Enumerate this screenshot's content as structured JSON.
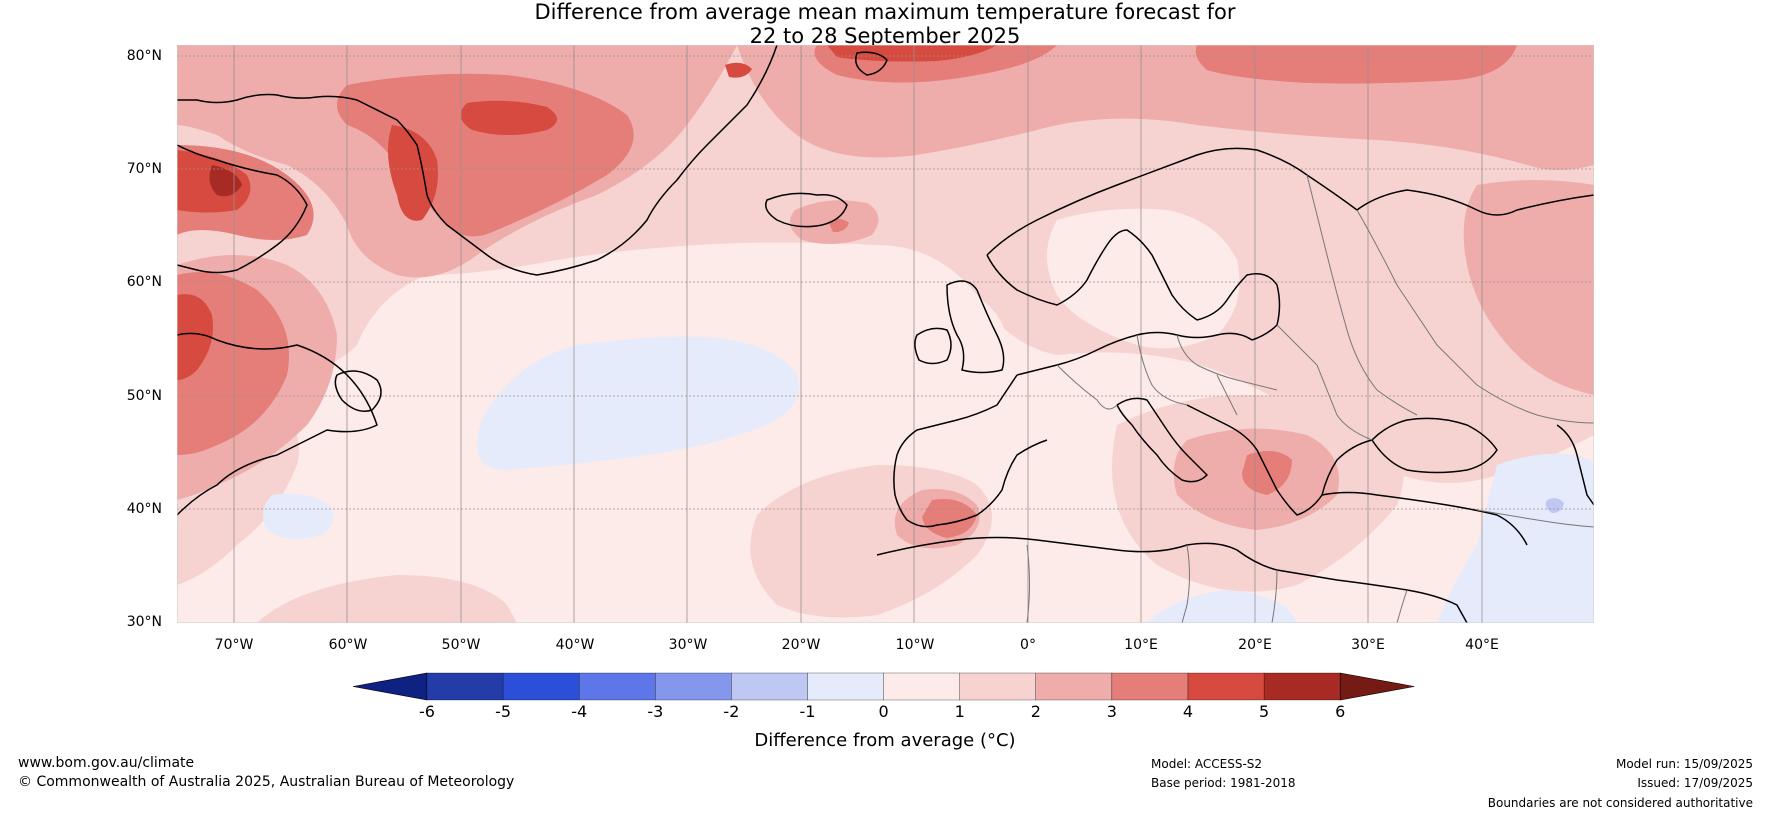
{
  "title": {
    "line1": "Difference from average mean maximum temperature forecast for",
    "line2": "22 to 28 September 2025"
  },
  "map": {
    "lat_labels": [
      "80°N",
      "70°N",
      "60°N",
      "50°N",
      "40°N",
      "30°N"
    ],
    "lon_labels": [
      "70°W",
      "60°W",
      "50°W",
      "40°W",
      "30°W",
      "20°W",
      "10°W",
      "0°",
      "10°E",
      "20°E",
      "30°E",
      "40°E"
    ],
    "colors": {
      "ocean_background": "#fcebe8",
      "land_coastline": "#000000",
      "borders": "#777777",
      "gridlines": "#9a8f8f"
    }
  },
  "colorbar": {
    "label": "Difference from average (°C)",
    "ticks": [
      "-6",
      "-5",
      "-4",
      "-3",
      "-2",
      "-1",
      "0",
      "1",
      "2",
      "3",
      "4",
      "5",
      "6"
    ],
    "colors": [
      "#0f2283",
      "#233ca8",
      "#2c4fd9",
      "#5d76e8",
      "#8597ec",
      "#bfc7f3",
      "#e6ebfb",
      "#fcebe8",
      "#f6d3d1",
      "#eeadab",
      "#e57d79",
      "#d64a3f",
      "#a82a24",
      "#761a16"
    ],
    "extend": "both"
  },
  "footer": {
    "website": "www.bom.gov.au/climate",
    "copyright": "© Commonwealth of Australia 2025, Australian Bureau of Meteorology",
    "model": "Model: ACCESS-S2",
    "base_period": "Base period: 1981-2018",
    "model_run": "Model run: 15/09/2025",
    "issued": "Issued: 17/09/2025",
    "disclaimer": "Boundaries are not considered authoritative"
  }
}
